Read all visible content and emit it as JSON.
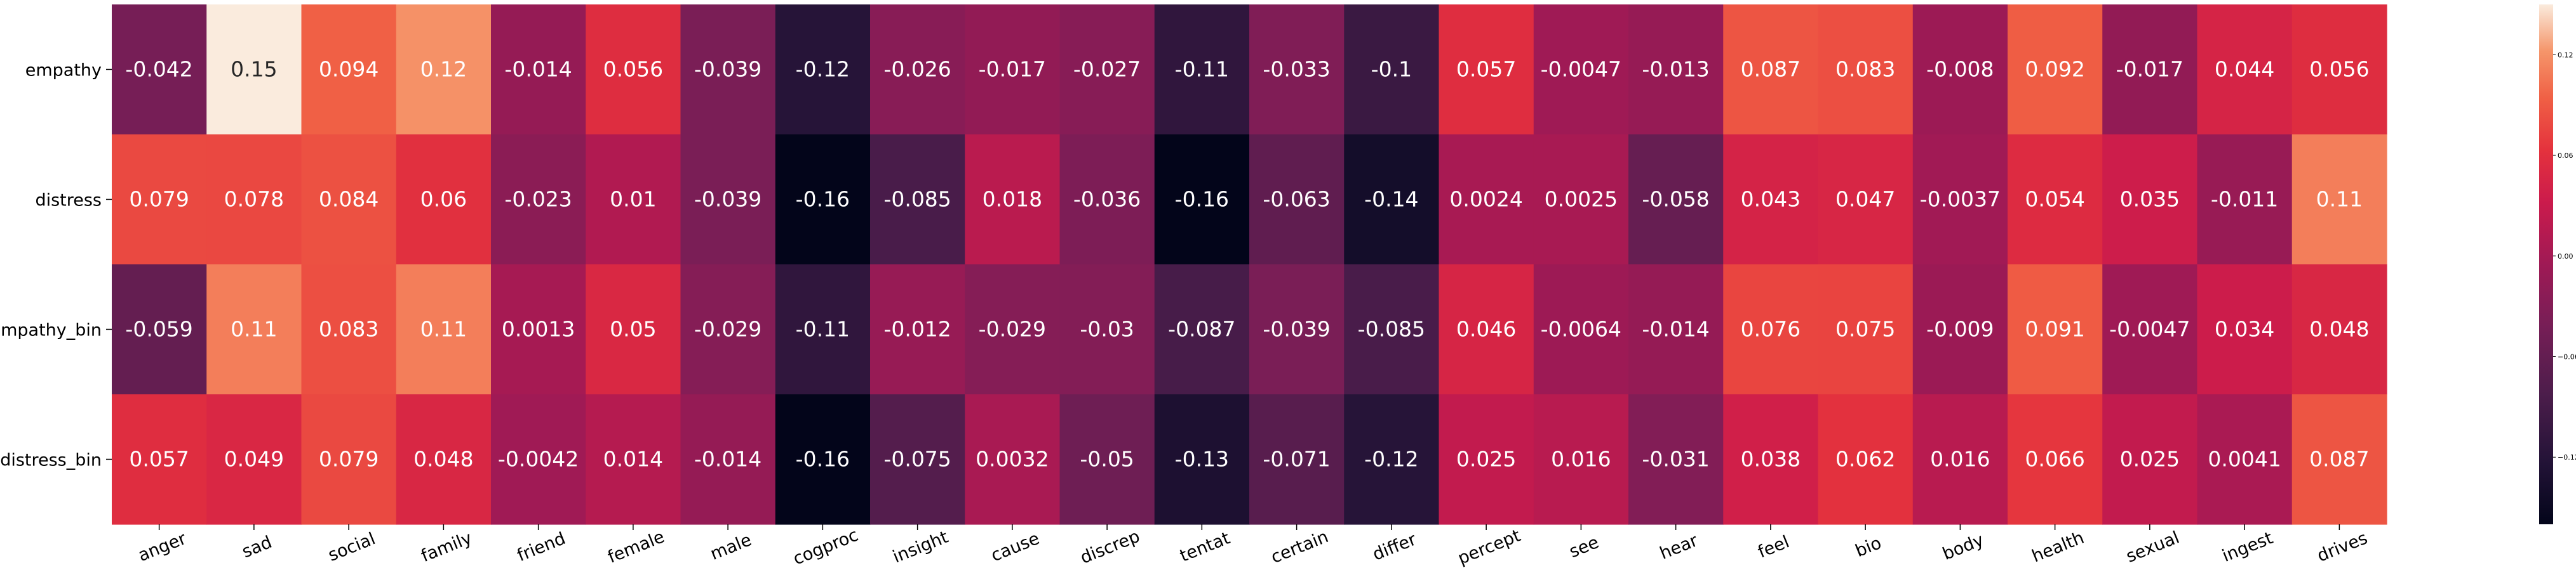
{
  "chart_data": {
    "type": "heatmap",
    "title": "",
    "xlabel": "",
    "ylabel": "",
    "rows": [
      "empathy",
      "distress",
      "empathy_bin",
      "distress_bin"
    ],
    "columns": [
      "anger",
      "sad",
      "social",
      "family",
      "friend",
      "female",
      "male",
      "cogproc",
      "insight",
      "cause",
      "discrep",
      "tentat",
      "certain",
      "differ",
      "percept",
      "see",
      "hear",
      "feel",
      "bio",
      "body",
      "health",
      "sexual",
      "ingest",
      "drives"
    ],
    "values": [
      [
        -0.042,
        0.15,
        0.094,
        0.12,
        -0.014,
        0.056,
        -0.039,
        -0.12,
        -0.026,
        -0.017,
        -0.027,
        -0.11,
        -0.033,
        -0.1,
        0.057,
        -0.0047,
        -0.013,
        0.087,
        0.083,
        -0.008,
        0.092,
        -0.017,
        0.044,
        0.056
      ],
      [
        0.079,
        0.078,
        0.084,
        0.06,
        -0.023,
        0.01,
        -0.039,
        -0.16,
        -0.085,
        0.018,
        -0.036,
        -0.16,
        -0.063,
        -0.14,
        0.0024,
        0.0025,
        -0.058,
        0.043,
        0.047,
        -0.0037,
        0.054,
        0.035,
        -0.011,
        0.11
      ],
      [
        -0.059,
        0.11,
        0.083,
        0.11,
        0.0013,
        0.05,
        -0.029,
        -0.11,
        -0.012,
        -0.029,
        -0.03,
        -0.087,
        -0.039,
        -0.085,
        0.046,
        -0.0064,
        -0.014,
        0.076,
        0.075,
        -0.009,
        0.091,
        -0.0047,
        0.034,
        0.048
      ],
      [
        0.057,
        0.049,
        0.079,
        0.048,
        -0.0042,
        0.014,
        -0.014,
        -0.16,
        -0.075,
        0.0032,
        -0.05,
        -0.13,
        -0.071,
        -0.12,
        0.025,
        0.016,
        -0.031,
        0.038,
        0.062,
        0.016,
        0.066,
        0.025,
        0.0041,
        0.087
      ]
    ],
    "value_labels": [
      [
        "-0.042",
        "0.15",
        "0.094",
        "0.12",
        "-0.014",
        "0.056",
        "-0.039",
        "-0.12",
        "-0.026",
        "-0.017",
        "-0.027",
        "-0.11",
        "-0.033",
        "-0.1",
        "0.057",
        "-0.0047",
        "-0.013",
        "0.087",
        "0.083",
        "-0.008",
        "0.092",
        "-0.017",
        "0.044",
        "0.056"
      ],
      [
        "0.079",
        "0.078",
        "0.084",
        "0.06",
        "-0.023",
        "0.01",
        "-0.039",
        "-0.16",
        "-0.085",
        "0.018",
        "-0.036",
        "-0.16",
        "-0.063",
        "-0.14",
        "0.0024",
        "0.0025",
        "-0.058",
        "0.043",
        "0.047",
        "-0.0037",
        "0.054",
        "0.035",
        "-0.011",
        "0.11"
      ],
      [
        "-0.059",
        "0.11",
        "0.083",
        "0.11",
        "0.0013",
        "0.05",
        "-0.029",
        "-0.11",
        "-0.012",
        "-0.029",
        "-0.03",
        "-0.087",
        "-0.039",
        "-0.085",
        "0.046",
        "-0.0064",
        "-0.014",
        "0.076",
        "0.075",
        "-0.009",
        "0.091",
        "-0.0047",
        "0.034",
        "0.048"
      ],
      [
        "0.057",
        "0.049",
        "0.079",
        "0.048",
        "-0.0042",
        "0.014",
        "-0.014",
        "-0.16",
        "-0.075",
        "0.0032",
        "-0.05",
        "-0.13",
        "-0.071",
        "-0.12",
        "0.025",
        "0.016",
        "-0.031",
        "0.038",
        "0.062",
        "0.016",
        "0.066",
        "0.025",
        "0.0041",
        "0.087"
      ]
    ],
    "colormap": "rocket",
    "vmin": -0.16,
    "vmax": 0.15,
    "colorbar": {
      "ticks": [
        0.12,
        0.06,
        0.0,
        -0.06,
        -0.12
      ],
      "tick_labels": [
        "0.12",
        "0.06",
        "0.00",
        "−0.06",
        "−0.12"
      ],
      "placement": "right"
    }
  }
}
